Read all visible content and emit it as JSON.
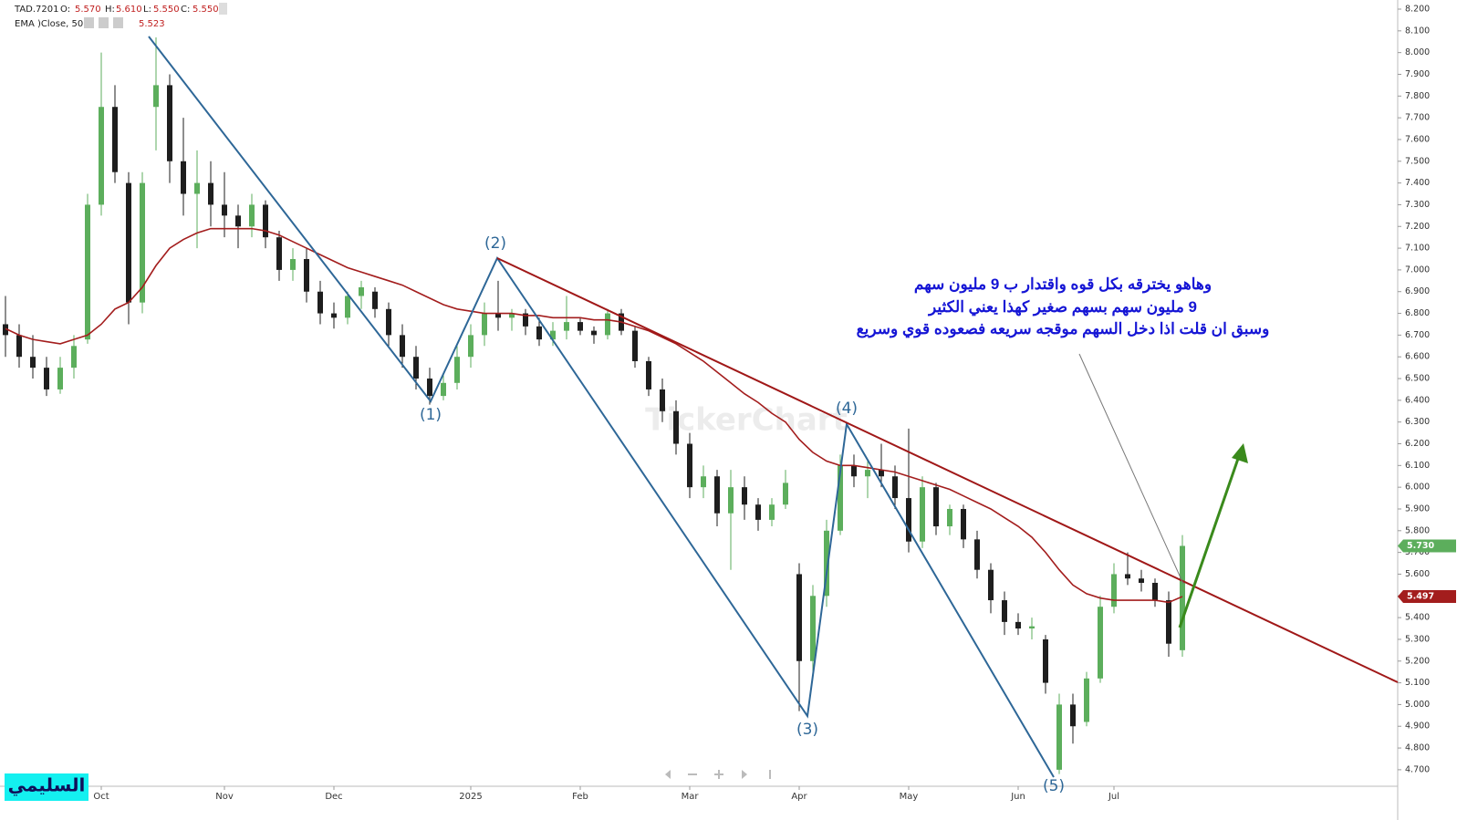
{
  "chart_data": {
    "type": "candlestick",
    "header": [
      {
        "label": "O:",
        "value": "5.570"
      },
      {
        "label": "H:",
        "value": "5.610"
      },
      {
        "label": "L:",
        "value": "5.550"
      },
      {
        "label": "C:",
        "value": "5.550"
      }
    ],
    "indicator_value": "5.523",
    "categories": [
      null,
      null,
      null,
      null,
      null,
      null,
      null,
      "Oct",
      null,
      null,
      null,
      null,
      null,
      null,
      null,
      null,
      "Nov",
      null,
      null,
      null,
      null,
      null,
      null,
      null,
      "Dec",
      null,
      null,
      null,
      null,
      null,
      null,
      null,
      null,
      null,
      "2025",
      null,
      null,
      null,
      null,
      null,
      null,
      null,
      "Feb",
      null,
      null,
      null,
      null,
      null,
      null,
      null,
      "Mar",
      null,
      null,
      null,
      null,
      null,
      null,
      null,
      "Apr",
      null,
      null,
      null,
      null,
      null,
      null,
      null,
      "May",
      null,
      null,
      null,
      null,
      null,
      null,
      null,
      "Jun",
      null,
      null,
      null,
      null,
      null,
      null,
      "Jul",
      null,
      null,
      null,
      null,
      null
    ],
    "series": [
      {
        "name": "TAD.7201",
        "up_color": "#5cae5c",
        "down_color": "#1e1e1e",
        "open": [
          6.75,
          6.7,
          6.6,
          6.55,
          6.45,
          6.55,
          6.68,
          7.3,
          7.75,
          7.4,
          6.85,
          7.75,
          7.85,
          7.5,
          7.35,
          7.4,
          7.3,
          7.25,
          7.2,
          7.3,
          7.15,
          7.0,
          7.05,
          6.9,
          6.8,
          6.78,
          6.88,
          6.9,
          6.82,
          6.7,
          6.6,
          6.5,
          6.42,
          6.48,
          6.6,
          6.7,
          6.8,
          6.78,
          6.8,
          6.74,
          6.68,
          6.72,
          6.76,
          6.72,
          6.7,
          6.8,
          6.72,
          6.58,
          6.45,
          6.35,
          6.2,
          6.0,
          6.05,
          5.88,
          6.0,
          5.92,
          5.85,
          5.92,
          5.6,
          5.2,
          5.5,
          5.8,
          6.1,
          6.05,
          6.08,
          6.05,
          5.95,
          5.75,
          6.0,
          5.82,
          5.9,
          5.76,
          5.62,
          5.48,
          5.38,
          5.35,
          5.3,
          4.7,
          5.0,
          4.92,
          5.12,
          5.45,
          5.6,
          5.58,
          5.56,
          5.48,
          5.25
        ],
        "high": [
          6.88,
          6.75,
          6.7,
          6.6,
          6.6,
          6.7,
          7.35,
          8.0,
          7.85,
          7.45,
          7.45,
          8.07,
          7.9,
          7.7,
          7.55,
          7.5,
          7.45,
          7.3,
          7.35,
          7.32,
          7.18,
          7.1,
          7.1,
          6.95,
          6.85,
          6.9,
          6.95,
          6.92,
          6.85,
          6.75,
          6.65,
          6.55,
          6.52,
          6.65,
          6.75,
          6.85,
          6.95,
          6.82,
          6.82,
          6.78,
          6.76,
          6.88,
          6.78,
          6.74,
          6.82,
          6.82,
          6.74,
          6.6,
          6.5,
          6.4,
          6.25,
          6.1,
          6.08,
          6.08,
          6.05,
          5.95,
          5.95,
          6.08,
          5.65,
          5.55,
          5.85,
          6.15,
          6.15,
          6.12,
          6.2,
          6.1,
          6.27,
          6.05,
          6.02,
          5.92,
          5.92,
          5.8,
          5.65,
          5.52,
          5.42,
          5.4,
          5.32,
          5.05,
          5.05,
          5.15,
          5.5,
          5.65,
          5.7,
          5.62,
          5.58,
          5.52,
          5.78
        ],
        "low": [
          6.6,
          6.55,
          6.5,
          6.42,
          6.43,
          6.5,
          6.66,
          7.25,
          7.4,
          6.75,
          6.8,
          7.55,
          7.4,
          7.25,
          7.1,
          7.2,
          7.15,
          7.1,
          7.15,
          7.1,
          6.95,
          6.95,
          6.85,
          6.75,
          6.73,
          6.75,
          6.82,
          6.78,
          6.65,
          6.55,
          6.45,
          6.38,
          6.4,
          6.45,
          6.55,
          6.65,
          6.72,
          6.72,
          6.7,
          6.65,
          6.65,
          6.68,
          6.7,
          6.66,
          6.68,
          6.7,
          6.55,
          6.42,
          6.3,
          6.15,
          5.95,
          5.95,
          5.82,
          5.62,
          5.85,
          5.8,
          5.82,
          5.9,
          4.97,
          5.15,
          5.45,
          5.78,
          6.0,
          5.95,
          6.0,
          5.9,
          5.7,
          5.72,
          5.78,
          5.78,
          5.72,
          5.58,
          5.42,
          5.32,
          5.32,
          5.3,
          5.05,
          4.68,
          4.82,
          4.9,
          5.1,
          5.42,
          5.55,
          5.52,
          5.45,
          5.22,
          5.22
        ],
        "close": [
          6.7,
          6.6,
          6.55,
          6.45,
          6.55,
          6.65,
          7.3,
          7.75,
          7.45,
          6.85,
          7.4,
          7.85,
          7.5,
          7.35,
          7.4,
          7.3,
          7.25,
          7.2,
          7.3,
          7.15,
          7.0,
          7.05,
          6.9,
          6.8,
          6.78,
          6.88,
          6.92,
          6.82,
          6.7,
          6.6,
          6.5,
          6.42,
          6.48,
          6.6,
          6.7,
          6.8,
          6.78,
          6.8,
          6.74,
          6.68,
          6.72,
          6.76,
          6.72,
          6.7,
          6.8,
          6.72,
          6.58,
          6.45,
          6.35,
          6.2,
          6.0,
          6.05,
          5.88,
          6.0,
          5.92,
          5.85,
          5.92,
          6.02,
          5.2,
          5.5,
          5.8,
          6.1,
          6.05,
          6.08,
          6.05,
          5.95,
          5.75,
          6.0,
          5.82,
          5.9,
          5.76,
          5.62,
          5.48,
          5.38,
          5.35,
          5.36,
          5.1,
          5.0,
          4.9,
          5.12,
          5.45,
          5.6,
          5.58,
          5.56,
          5.48,
          5.28,
          5.73
        ]
      },
      {
        "name": "EMA )Close, 50(",
        "color": "#a31d1d",
        "values": [
          6.73,
          6.7,
          6.68,
          6.67,
          6.66,
          6.68,
          6.7,
          6.75,
          6.82,
          6.85,
          6.92,
          7.02,
          7.1,
          7.14,
          7.17,
          7.19,
          7.19,
          7.19,
          7.19,
          7.18,
          7.16,
          7.13,
          7.1,
          7.07,
          7.04,
          7.01,
          6.99,
          6.97,
          6.95,
          6.93,
          6.9,
          6.87,
          6.84,
          6.82,
          6.81,
          6.8,
          6.8,
          6.8,
          6.79,
          6.79,
          6.78,
          6.78,
          6.78,
          6.77,
          6.77,
          6.76,
          6.74,
          6.72,
          6.69,
          6.66,
          6.62,
          6.58,
          6.53,
          6.48,
          6.43,
          6.39,
          6.34,
          6.3,
          6.22,
          6.16,
          6.12,
          6.1,
          6.1,
          6.09,
          6.08,
          6.07,
          6.05,
          6.03,
          6.01,
          5.99,
          5.96,
          5.93,
          5.9,
          5.86,
          5.82,
          5.77,
          5.7,
          5.62,
          5.55,
          5.51,
          5.49,
          5.48,
          5.48,
          5.48,
          5.48,
          5.47,
          5.497
        ]
      }
    ],
    "price_tags": [
      {
        "value": 5.73,
        "label": "5.730",
        "color": "#5cae5c"
      },
      {
        "value": 5.497,
        "label": "5.497",
        "color": "#a31d1d"
      }
    ],
    "ylim": [
      4.624,
      8.242
    ],
    "yticks": [
      {
        "value": 4.7,
        "label": "4.700"
      },
      {
        "value": 4.8,
        "label": "4.800"
      },
      {
        "value": 4.9,
        "label": "4.900"
      },
      {
        "value": 5.0,
        "label": "5.000"
      },
      {
        "value": 5.1,
        "label": "5.100"
      },
      {
        "value": 5.2,
        "label": "5.200"
      },
      {
        "value": 5.3,
        "label": "5.300"
      },
      {
        "value": 5.4,
        "label": "5.400"
      },
      {
        "value": 5.5,
        "label": "5.500"
      },
      {
        "value": 5.6,
        "label": "5.600"
      },
      {
        "value": 5.7,
        "label": "5.700"
      },
      {
        "value": 5.8,
        "label": "5.800"
      },
      {
        "value": 5.9,
        "label": "5.900"
      },
      {
        "value": 6.0,
        "label": "6.000"
      },
      {
        "value": 6.1,
        "label": "6.100"
      },
      {
        "value": 6.2,
        "label": "6.200"
      },
      {
        "value": 6.3,
        "label": "6.300"
      },
      {
        "value": 6.4,
        "label": "6.400"
      },
      {
        "value": 6.5,
        "label": "6.500"
      },
      {
        "value": 6.6,
        "label": "6.600"
      },
      {
        "value": 6.7,
        "label": "6.700"
      },
      {
        "value": 6.8,
        "label": "6.800"
      },
      {
        "value": 6.9,
        "label": "6.900"
      },
      {
        "value": 7.0,
        "label": "7.000"
      },
      {
        "value": 7.1,
        "label": "7.100"
      },
      {
        "value": 7.2,
        "label": "7.200"
      },
      {
        "value": 7.3,
        "label": "7.300"
      },
      {
        "value": 7.4,
        "label": "7.400"
      },
      {
        "value": 7.5,
        "label": "7.500"
      },
      {
        "value": 7.6,
        "label": "7.600"
      },
      {
        "value": 7.7,
        "label": "7.700"
      },
      {
        "value": 7.8,
        "label": "7.800"
      },
      {
        "value": 7.9,
        "label": "7.900"
      },
      {
        "value": 8.0,
        "label": "8.000"
      },
      {
        "value": 8.1,
        "label": "8.100"
      },
      {
        "value": 8.2,
        "label": "8.200"
      }
    ],
    "wave_labels": [
      "(1)",
      "(2)",
      "(3)",
      "(4)",
      "(5)"
    ],
    "annotation": [
      "وهاهو يخترقه بكل قوه واقتدار  ب 9 مليون سهم",
      "9 مليون سهم بسهم صغير كهذا يعني الكثير",
      "وسبق ان قلت اذا دخل السهم موقجه سريعه فصعوده قوي وسريع"
    ],
    "watermark": "TickerChart",
    "signature": "السليمي"
  }
}
